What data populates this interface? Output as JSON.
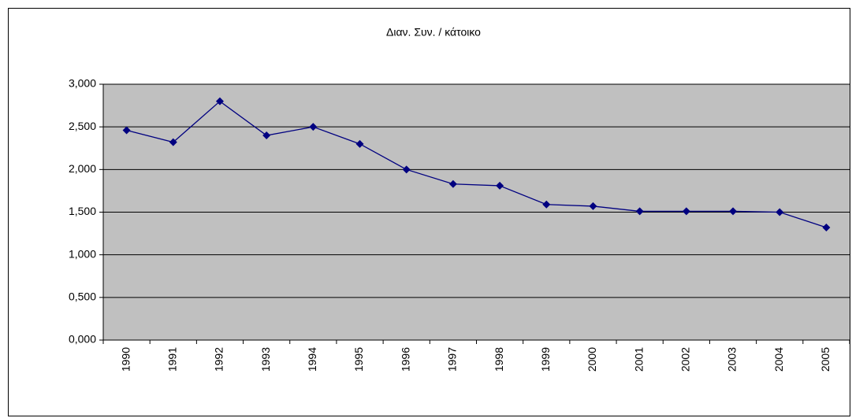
{
  "chart_data": {
    "type": "line",
    "title": "Διαν. Συν. / κάτοικο",
    "categories": [
      "1990",
      "1991",
      "1992",
      "1993",
      "1994",
      "1995",
      "1996",
      "1997",
      "1998",
      "1999",
      "2000",
      "2001",
      "2002",
      "2003",
      "2004",
      "2005"
    ],
    "series": [
      {
        "name": "Διαν. Συν. / κάτοικο",
        "color": "#000080",
        "values": [
          2.46,
          2.32,
          2.8,
          2.4,
          2.5,
          2.3,
          2.0,
          1.83,
          1.81,
          1.59,
          1.57,
          1.51,
          1.51,
          1.51,
          1.5,
          1.32
        ]
      }
    ],
    "ylim": [
      0,
      3
    ],
    "yticks": [
      {
        "value": 0,
        "label": "0,000"
      },
      {
        "value": 0.5,
        "label": "0,500"
      },
      {
        "value": 1,
        "label": "1,000"
      },
      {
        "value": 1.5,
        "label": "1,500"
      },
      {
        "value": 2,
        "label": "2,000"
      },
      {
        "value": 2.5,
        "label": "2,500"
      },
      {
        "value": 3,
        "label": "3,000"
      }
    ],
    "grid": true,
    "plot_background": "#c0c0c0"
  }
}
